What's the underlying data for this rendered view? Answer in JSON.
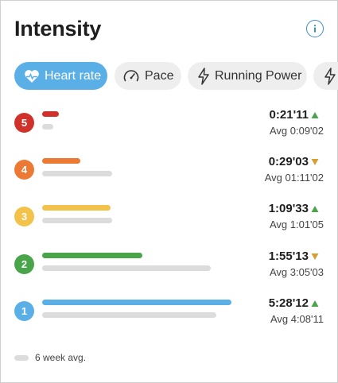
{
  "header": {
    "title": "Intensity",
    "info_icon": "info-circle-icon"
  },
  "tabs": [
    {
      "label": "Heart rate",
      "icon": "heart-rate-icon",
      "active": true
    },
    {
      "label": "Pace",
      "icon": "speedometer-icon",
      "active": false
    },
    {
      "label": "Running Power",
      "icon": "lightning-icon",
      "active": false
    },
    {
      "label": "",
      "icon": "lightning-icon",
      "active": false
    }
  ],
  "zones": [
    {
      "zone": "5",
      "color": "#d0322b",
      "time": "0:21'11",
      "trend": "up",
      "avg": "Avg 0:09'02",
      "cur_fraction": 0.09,
      "avg_fraction": 0.06
    },
    {
      "zone": "4",
      "color": "#ec7a34",
      "time": "0:29'03",
      "trend": "down",
      "avg": "Avg 01:11'02",
      "cur_fraction": 0.2,
      "avg_fraction": 0.37
    },
    {
      "zone": "3",
      "color": "#f2c24a",
      "time": "1:09'33",
      "trend": "up",
      "avg": "Avg 1:01'05",
      "cur_fraction": 0.36,
      "avg_fraction": 0.37
    },
    {
      "zone": "2",
      "color": "#4aa54a",
      "time": "1:55'13",
      "trend": "down",
      "avg": "Avg 3:05'03",
      "cur_fraction": 0.53,
      "avg_fraction": 0.89
    },
    {
      "zone": "1",
      "color": "#5aafe6",
      "time": "5:28'12",
      "trend": "up",
      "avg": "Avg 4:08'11",
      "cur_fraction": 1.0,
      "avg_fraction": 0.92
    }
  ],
  "legend": {
    "label": "6 week avg."
  },
  "colors": {
    "trend_up": "#4aa54a",
    "trend_down": "#d4a032",
    "accent": "#5aafe6",
    "avg_bar": "#dcdcdc"
  }
}
